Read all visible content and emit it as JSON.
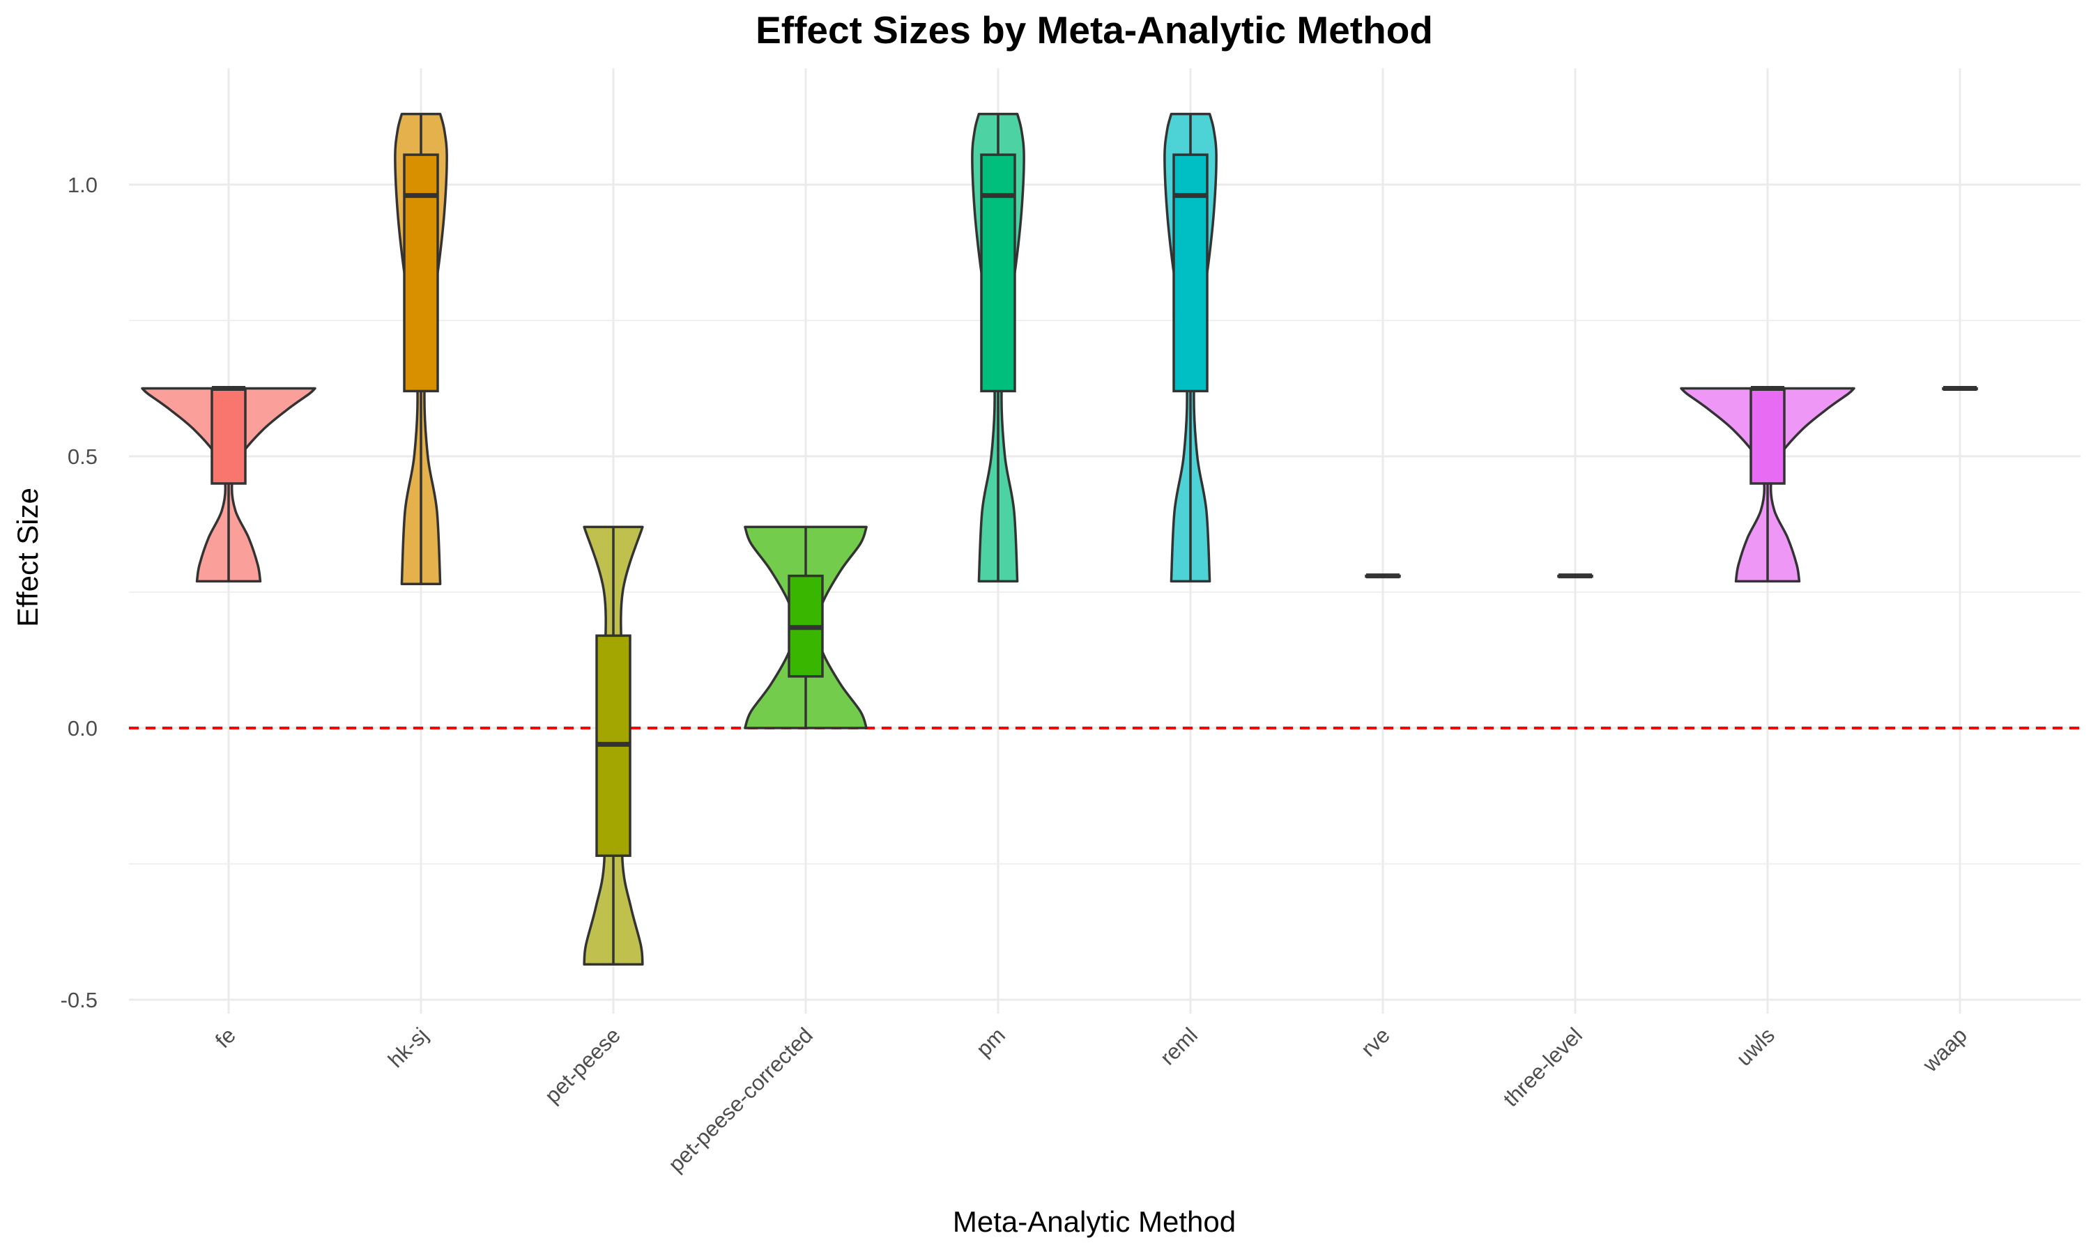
{
  "chart_data": {
    "type": "violin",
    "title": "Effect Sizes by Meta-Analytic Method",
    "xlabel": "Meta-Analytic Method",
    "ylabel": "Effect Size",
    "ylim": [
      -0.5,
      1.2
    ],
    "yticks": [
      -0.5,
      0.0,
      0.5,
      1.0
    ],
    "ytick_labels": [
      "-0.5",
      "0.0",
      "0.5",
      "1.0"
    ],
    "grid": true,
    "legend": "none",
    "reference_line": {
      "y": 0.0,
      "style": "dashed",
      "color": "#FF0000"
    },
    "categories": [
      "fe",
      "hk-sj",
      "pet-peese",
      "pet-peese-corrected",
      "pm",
      "reml",
      "rve",
      "three-level",
      "uwls",
      "waap"
    ],
    "series": [
      {
        "category": "fe",
        "color": "#F8766D",
        "min": 0.27,
        "q1": 0.45,
        "median": 0.625,
        "q3": 0.625,
        "max": 0.625,
        "density": [
          [
            0.27,
            0.34
          ],
          [
            0.3,
            0.31
          ],
          [
            0.35,
            0.2
          ],
          [
            0.4,
            0.04
          ],
          [
            0.45,
            0.0
          ],
          [
            0.5,
            0.1
          ],
          [
            0.55,
            0.38
          ],
          [
            0.59,
            0.7
          ],
          [
            0.615,
            0.93
          ],
          [
            0.625,
            1.0
          ]
        ]
      },
      {
        "category": "hk-sj",
        "color": "#D89000",
        "min": 0.265,
        "q1": 0.62,
        "median": 0.98,
        "q3": 1.055,
        "max": 1.13,
        "density": [
          [
            0.265,
            0.19
          ],
          [
            0.4,
            0.15
          ],
          [
            0.5,
            0.04
          ],
          [
            0.62,
            0.0
          ],
          [
            0.75,
            0.07
          ],
          [
            0.85,
            0.17
          ],
          [
            0.95,
            0.24
          ],
          [
            1.05,
            0.27
          ],
          [
            1.1,
            0.24
          ],
          [
            1.13,
            0.19
          ]
        ]
      },
      {
        "category": "pet-peese",
        "color": "#A3A500",
        "min": -0.435,
        "q1": -0.235,
        "median": -0.03,
        "q3": 0.17,
        "max": 0.37,
        "density": [
          [
            -0.435,
            0.31
          ],
          [
            -0.4,
            0.29
          ],
          [
            -0.33,
            0.17
          ],
          [
            -0.25,
            0.07
          ],
          [
            -0.1,
            0.06
          ],
          [
            0.1,
            0.06
          ],
          [
            0.25,
            0.07
          ],
          [
            0.37,
            0.31
          ]
        ]
      },
      {
        "category": "pet-peese-corrected",
        "color": "#39B600",
        "min": 0.0,
        "q1": 0.095,
        "median": 0.185,
        "q3": 0.28,
        "max": 0.37,
        "density": [
          [
            0.0,
            0.69
          ],
          [
            0.03,
            0.62
          ],
          [
            0.08,
            0.38
          ],
          [
            0.14,
            0.16
          ],
          [
            0.185,
            0.1
          ],
          [
            0.23,
            0.16
          ],
          [
            0.29,
            0.38
          ],
          [
            0.34,
            0.62
          ],
          [
            0.37,
            0.69
          ]
        ]
      },
      {
        "category": "pm",
        "color": "#00BF7D",
        "min": 0.27,
        "q1": 0.62,
        "median": 0.98,
        "q3": 1.055,
        "max": 1.13,
        "density": [
          [
            0.27,
            0.19
          ],
          [
            0.4,
            0.15
          ],
          [
            0.5,
            0.04
          ],
          [
            0.62,
            0.0
          ],
          [
            0.75,
            0.07
          ],
          [
            0.85,
            0.17
          ],
          [
            0.95,
            0.24
          ],
          [
            1.05,
            0.27
          ],
          [
            1.1,
            0.24
          ],
          [
            1.13,
            0.19
          ]
        ]
      },
      {
        "category": "reml",
        "color": "#00BFC4",
        "min": 0.27,
        "q1": 0.62,
        "median": 0.98,
        "q3": 1.055,
        "max": 1.13,
        "density": [
          [
            0.27,
            0.19
          ],
          [
            0.4,
            0.15
          ],
          [
            0.5,
            0.04
          ],
          [
            0.62,
            0.0
          ],
          [
            0.75,
            0.07
          ],
          [
            0.85,
            0.17
          ],
          [
            0.95,
            0.24
          ],
          [
            1.05,
            0.27
          ],
          [
            1.1,
            0.24
          ],
          [
            1.13,
            0.19
          ]
        ]
      },
      {
        "category": "rve",
        "color": "#00B0F6",
        "min": 0.28,
        "q1": 0.28,
        "median": 0.28,
        "q3": 0.28,
        "max": 0.28,
        "density": []
      },
      {
        "category": "three-level",
        "color": "#9590FF",
        "min": 0.28,
        "q1": 0.28,
        "median": 0.28,
        "q3": 0.28,
        "max": 0.28,
        "density": []
      },
      {
        "category": "uwls",
        "color": "#E76BF3",
        "min": 0.27,
        "q1": 0.45,
        "median": 0.625,
        "q3": 0.625,
        "max": 0.625,
        "density": [
          [
            0.27,
            0.34
          ],
          [
            0.3,
            0.31
          ],
          [
            0.35,
            0.2
          ],
          [
            0.4,
            0.04
          ],
          [
            0.45,
            0.0
          ],
          [
            0.5,
            0.1
          ],
          [
            0.55,
            0.38
          ],
          [
            0.59,
            0.7
          ],
          [
            0.615,
            0.93
          ],
          [
            0.625,
            1.0
          ]
        ]
      },
      {
        "category": "waap",
        "color": "#FF62BC",
        "min": 0.625,
        "q1": 0.625,
        "median": 0.625,
        "q3": 0.625,
        "max": 0.625,
        "density": []
      }
    ]
  }
}
